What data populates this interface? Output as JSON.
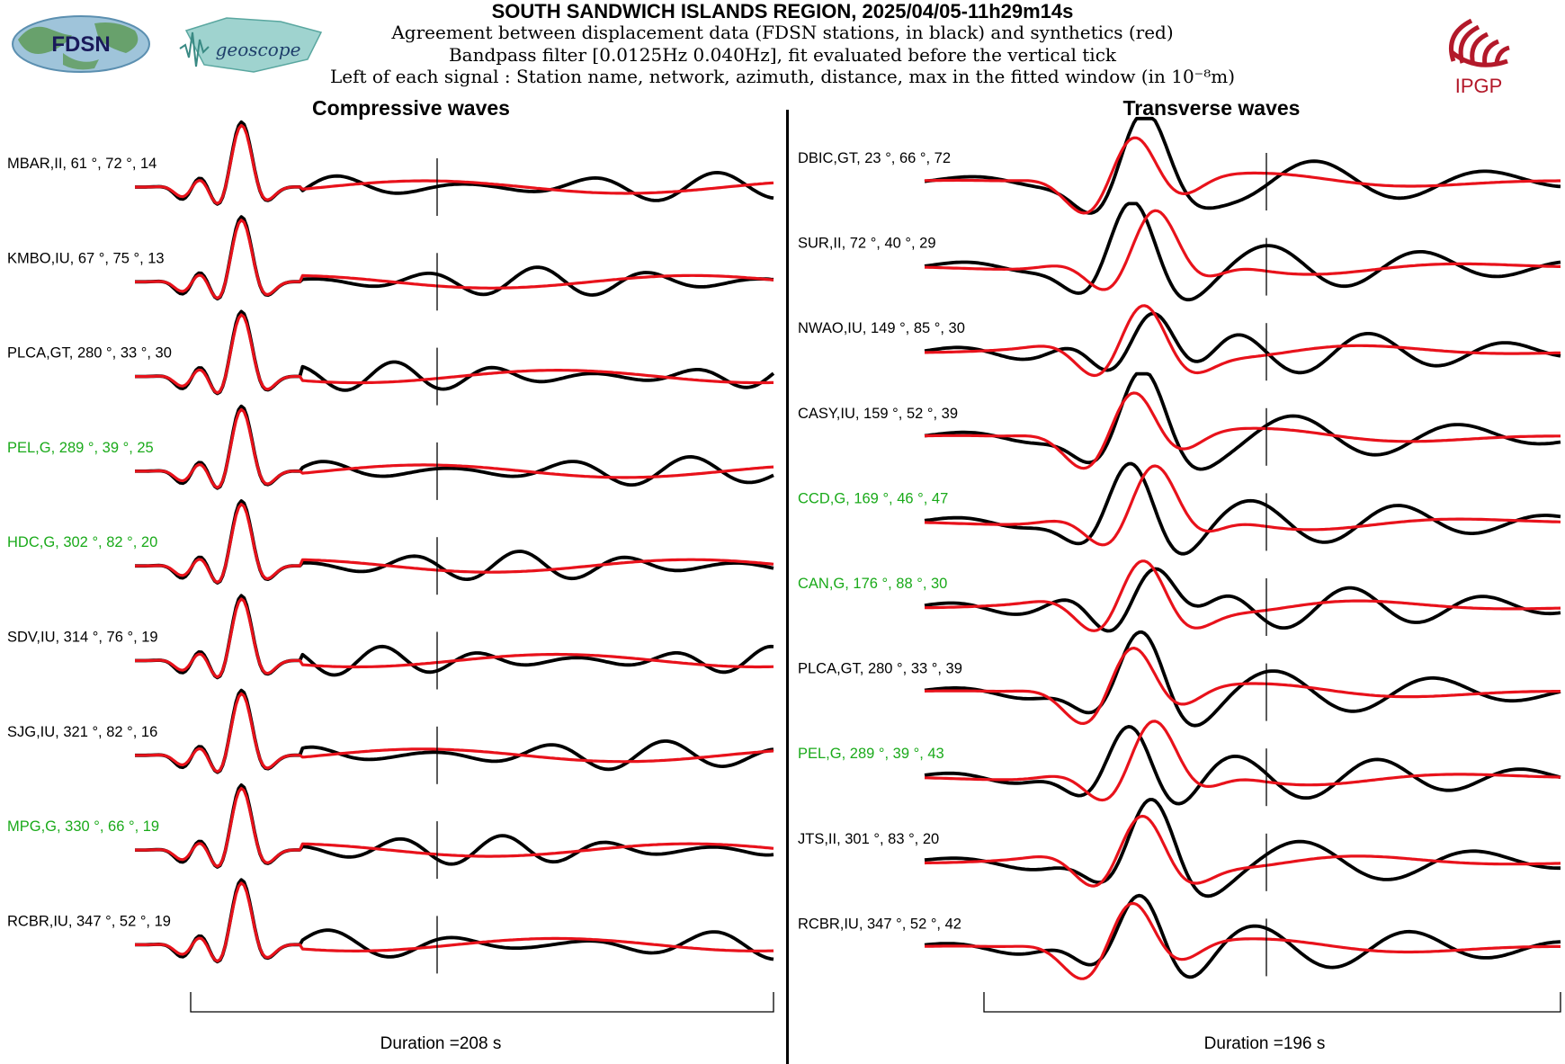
{
  "header": {
    "title": "SOUTH SANDWICH ISLANDS REGION, 2025/04/05-11h29m14s",
    "line1": "Agreement between displacement data (FDSN stations, in black) and synthetics (red)",
    "line2": "Bandpass filter [0.0125Hz 0.040Hz], fit evaluated before the vertical tick",
    "line3": "Left of each signal : Station name, network, azimuth, distance, max in the fitted window (in 10⁻⁸m)"
  },
  "logos": {
    "fdsn": "FDSN",
    "geoscope": "geoscope",
    "ipgp": "IPGP"
  },
  "colors": {
    "data": "#000000",
    "synthetic": "#e8121b",
    "highlight": "#1aaa1a",
    "ipgp": "#b3192a"
  },
  "chart_data": [
    {
      "type": "line",
      "title": "Compressive waves",
      "duration_label": "Duration =208 s",
      "duration_s": 208,
      "series_legend": {
        "data": "black",
        "synthetics": "red"
      },
      "traces": [
        {
          "label": "MBAR,II, 61 °, 72 °, 14",
          "station": "MBAR",
          "network": "II",
          "azimuth": 61,
          "distance": 72,
          "max": 14,
          "highlight": false
        },
        {
          "label": "KMBO,IU, 67 °, 75 °, 13",
          "station": "KMBO",
          "network": "IU",
          "azimuth": 67,
          "distance": 75,
          "max": 13,
          "highlight": false
        },
        {
          "label": "PLCA,GT, 280 °, 33 °, 30",
          "station": "PLCA",
          "network": "GT",
          "azimuth": 280,
          "distance": 33,
          "max": 30,
          "highlight": false
        },
        {
          "label": "PEL,G, 289 °, 39 °, 25",
          "station": "PEL",
          "network": "G",
          "azimuth": 289,
          "distance": 39,
          "max": 25,
          "highlight": true
        },
        {
          "label": "HDC,G, 302 °, 82 °, 20",
          "station": "HDC",
          "network": "G",
          "azimuth": 302,
          "distance": 82,
          "max": 20,
          "highlight": true
        },
        {
          "label": "SDV,IU, 314 °, 76 °, 19",
          "station": "SDV",
          "network": "IU",
          "azimuth": 314,
          "distance": 76,
          "max": 19,
          "highlight": false
        },
        {
          "label": "SJG,IU, 321 °, 82 °, 16",
          "station": "SJG",
          "network": "IU",
          "azimuth": 321,
          "distance": 82,
          "max": 16,
          "highlight": false
        },
        {
          "label": "MPG,G, 330 °, 66 °, 19",
          "station": "MPG",
          "network": "G",
          "azimuth": 330,
          "distance": 66,
          "max": 19,
          "highlight": true
        },
        {
          "label": "RCBR,IU, 347 °, 52 °, 19",
          "station": "RCBR",
          "network": "IU",
          "azimuth": 347,
          "distance": 52,
          "max": 19,
          "highlight": false
        }
      ]
    },
    {
      "type": "line",
      "title": "Transverse waves",
      "duration_label": "Duration =196 s",
      "duration_s": 196,
      "series_legend": {
        "data": "black",
        "synthetics": "red"
      },
      "traces": [
        {
          "label": "DBIC,GT, 23 °, 66 °, 72",
          "station": "DBIC",
          "network": "GT",
          "azimuth": 23,
          "distance": 66,
          "max": 72,
          "highlight": false
        },
        {
          "label": "SUR,II, 72 °, 40 °, 29",
          "station": "SUR",
          "network": "II",
          "azimuth": 72,
          "distance": 40,
          "max": 29,
          "highlight": false
        },
        {
          "label": "NWAO,IU, 149 °, 85 °, 30",
          "station": "NWAO",
          "network": "IU",
          "azimuth": 149,
          "distance": 85,
          "max": 30,
          "highlight": false
        },
        {
          "label": "CASY,IU, 159 °, 52 °, 39",
          "station": "CASY",
          "network": "IU",
          "azimuth": 159,
          "distance": 52,
          "max": 39,
          "highlight": false
        },
        {
          "label": "CCD,G, 169 °, 46 °, 47",
          "station": "CCD",
          "network": "G",
          "azimuth": 169,
          "distance": 46,
          "max": 47,
          "highlight": true
        },
        {
          "label": "CAN,G, 176 °, 88 °, 30",
          "station": "CAN",
          "network": "G",
          "azimuth": 176,
          "distance": 88,
          "max": 30,
          "highlight": true
        },
        {
          "label": "PLCA,GT, 280 °, 33 °, 39",
          "station": "PLCA",
          "network": "GT",
          "azimuth": 280,
          "distance": 33,
          "max": 39,
          "highlight": false
        },
        {
          "label": "PEL,G, 289 °, 39 °, 43",
          "station": "PEL",
          "network": "G",
          "azimuth": 289,
          "distance": 39,
          "max": 43,
          "highlight": true
        },
        {
          "label": "JTS,II, 301 °, 83 °, 20",
          "station": "JTS",
          "network": "II",
          "azimuth": 301,
          "distance": 83,
          "max": 20,
          "highlight": false
        },
        {
          "label": "RCBR,IU, 347 °, 52 °, 42",
          "station": "RCBR",
          "network": "IU",
          "azimuth": 347,
          "distance": 52,
          "max": 42,
          "highlight": false
        }
      ]
    }
  ]
}
